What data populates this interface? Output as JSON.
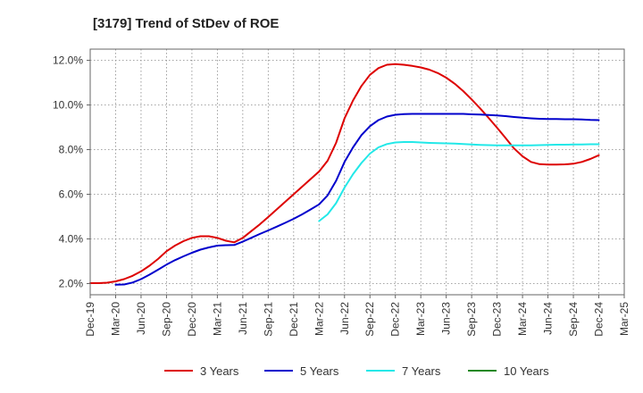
{
  "chart_data": {
    "type": "line",
    "title": "[3179]  Trend of StDev of ROE",
    "xlabel": "",
    "ylabel": "",
    "x_ticks": [
      "Dec-19",
      "Mar-20",
      "Jun-20",
      "Sep-20",
      "Dec-20",
      "Mar-21",
      "Jun-21",
      "Sep-21",
      "Dec-21",
      "Mar-22",
      "Jun-22",
      "Sep-22",
      "Dec-22",
      "Mar-23",
      "Jun-23",
      "Sep-23",
      "Dec-23",
      "Mar-24",
      "Jun-24",
      "Sep-24",
      "Dec-24",
      "Mar-25"
    ],
    "y_ticks": [
      "2.0%",
      "4.0%",
      "6.0%",
      "8.0%",
      "10.0%",
      "12.0%"
    ],
    "y_tick_values": [
      2,
      4,
      6,
      8,
      10,
      12
    ],
    "ylim": [
      1.5,
      12.5
    ],
    "grid": true,
    "legend_position": "bottom",
    "series": [
      {
        "name": "3 Years",
        "color": "#dd0000",
        "points": [
          [
            "Dec-19",
            2.02
          ],
          [
            "Jan-20",
            2.02
          ],
          [
            "Feb-20",
            2.04
          ],
          [
            "Mar-20",
            2.1
          ],
          [
            "Apr-20",
            2.2
          ],
          [
            "May-20",
            2.35
          ],
          [
            "Jun-20",
            2.55
          ],
          [
            "Jul-20",
            2.8
          ],
          [
            "Aug-20",
            3.1
          ],
          [
            "Sep-20",
            3.45
          ],
          [
            "Oct-20",
            3.7
          ],
          [
            "Nov-20",
            3.9
          ],
          [
            "Dec-20",
            4.05
          ],
          [
            "Jan-21",
            4.12
          ],
          [
            "Feb-21",
            4.12
          ],
          [
            "Mar-21",
            4.05
          ],
          [
            "Apr-21",
            3.92
          ],
          [
            "May-21",
            3.85
          ],
          [
            "Jun-21",
            4.05
          ],
          [
            "Jul-21",
            4.35
          ],
          [
            "Aug-21",
            4.65
          ],
          [
            "Sep-21",
            4.98
          ],
          [
            "Oct-21",
            5.32
          ],
          [
            "Nov-21",
            5.66
          ],
          [
            "Dec-21",
            6.0
          ],
          [
            "Jan-22",
            6.34
          ],
          [
            "Feb-22",
            6.68
          ],
          [
            "Mar-22",
            7.02
          ],
          [
            "Apr-22",
            7.5
          ],
          [
            "May-22",
            8.3
          ],
          [
            "Jun-22",
            9.4
          ],
          [
            "Jul-22",
            10.2
          ],
          [
            "Aug-22",
            10.85
          ],
          [
            "Sep-22",
            11.35
          ],
          [
            "Oct-22",
            11.65
          ],
          [
            "Nov-22",
            11.8
          ],
          [
            "Dec-22",
            11.83
          ],
          [
            "Jan-23",
            11.8
          ],
          [
            "Feb-23",
            11.75
          ],
          [
            "Mar-23",
            11.68
          ],
          [
            "Apr-23",
            11.58
          ],
          [
            "May-23",
            11.43
          ],
          [
            "Jun-23",
            11.22
          ],
          [
            "Jul-23",
            10.95
          ],
          [
            "Aug-23",
            10.62
          ],
          [
            "Sep-23",
            10.25
          ],
          [
            "Oct-23",
            9.85
          ],
          [
            "Nov-23",
            9.42
          ],
          [
            "Dec-23",
            8.98
          ],
          [
            "Jan-24",
            8.52
          ],
          [
            "Feb-24",
            8.05
          ],
          [
            "Mar-24",
            7.7
          ],
          [
            "Apr-24",
            7.45
          ],
          [
            "May-24",
            7.35
          ],
          [
            "Jun-24",
            7.33
          ],
          [
            "Jul-24",
            7.33
          ],
          [
            "Aug-24",
            7.34
          ],
          [
            "Sep-24",
            7.37
          ],
          [
            "Oct-24",
            7.45
          ],
          [
            "Nov-24",
            7.58
          ],
          [
            "Dec-24",
            7.75
          ]
        ]
      },
      {
        "name": "5 Years",
        "color": "#0000cc",
        "points": [
          [
            "Mar-20",
            1.95
          ],
          [
            "Apr-20",
            1.96
          ],
          [
            "May-20",
            2.05
          ],
          [
            "Jun-20",
            2.2
          ],
          [
            "Jul-20",
            2.4
          ],
          [
            "Aug-20",
            2.62
          ],
          [
            "Sep-20",
            2.85
          ],
          [
            "Oct-20",
            3.05
          ],
          [
            "Nov-20",
            3.22
          ],
          [
            "Dec-20",
            3.38
          ],
          [
            "Jan-21",
            3.52
          ],
          [
            "Feb-21",
            3.62
          ],
          [
            "Mar-21",
            3.7
          ],
          [
            "Apr-21",
            3.72
          ],
          [
            "May-21",
            3.73
          ],
          [
            "Jun-21",
            3.88
          ],
          [
            "Jul-21",
            4.05
          ],
          [
            "Aug-21",
            4.22
          ],
          [
            "Sep-21",
            4.38
          ],
          [
            "Oct-21",
            4.55
          ],
          [
            "Nov-21",
            4.72
          ],
          [
            "Dec-21",
            4.9
          ],
          [
            "Jan-22",
            5.1
          ],
          [
            "Feb-22",
            5.32
          ],
          [
            "Mar-22",
            5.55
          ],
          [
            "Apr-22",
            5.95
          ],
          [
            "May-22",
            6.6
          ],
          [
            "Jun-22",
            7.45
          ],
          [
            "Jul-22",
            8.1
          ],
          [
            "Aug-22",
            8.65
          ],
          [
            "Sep-22",
            9.05
          ],
          [
            "Oct-22",
            9.32
          ],
          [
            "Nov-22",
            9.48
          ],
          [
            "Dec-22",
            9.56
          ],
          [
            "Jan-23",
            9.59
          ],
          [
            "Feb-23",
            9.6
          ],
          [
            "Mar-23",
            9.6
          ],
          [
            "Apr-23",
            9.6
          ],
          [
            "May-23",
            9.6
          ],
          [
            "Jun-23",
            9.6
          ],
          [
            "Jul-23",
            9.6
          ],
          [
            "Aug-23",
            9.6
          ],
          [
            "Sep-23",
            9.58
          ],
          [
            "Oct-23",
            9.57
          ],
          [
            "Nov-23",
            9.55
          ],
          [
            "Dec-23",
            9.53
          ],
          [
            "Jan-24",
            9.5
          ],
          [
            "Feb-24",
            9.46
          ],
          [
            "Mar-24",
            9.43
          ],
          [
            "Apr-24",
            9.4
          ],
          [
            "May-24",
            9.38
          ],
          [
            "Jun-24",
            9.37
          ],
          [
            "Jul-24",
            9.37
          ],
          [
            "Aug-24",
            9.36
          ],
          [
            "Sep-24",
            9.36
          ],
          [
            "Oct-24",
            9.35
          ],
          [
            "Nov-24",
            9.33
          ],
          [
            "Dec-24",
            9.32
          ]
        ]
      },
      {
        "name": "7 Years",
        "color": "#22e8e8",
        "points": [
          [
            "Mar-22",
            4.8
          ],
          [
            "Apr-22",
            5.1
          ],
          [
            "May-22",
            5.6
          ],
          [
            "Jun-22",
            6.3
          ],
          [
            "Jul-22",
            6.9
          ],
          [
            "Aug-22",
            7.4
          ],
          [
            "Sep-22",
            7.82
          ],
          [
            "Oct-22",
            8.1
          ],
          [
            "Nov-22",
            8.25
          ],
          [
            "Dec-22",
            8.32
          ],
          [
            "Jan-23",
            8.34
          ],
          [
            "Feb-23",
            8.34
          ],
          [
            "Mar-23",
            8.32
          ],
          [
            "Apr-23",
            8.3
          ],
          [
            "May-23",
            8.29
          ],
          [
            "Jun-23",
            8.28
          ],
          [
            "Jul-23",
            8.27
          ],
          [
            "Aug-23",
            8.25
          ],
          [
            "Sep-23",
            8.23
          ],
          [
            "Oct-23",
            8.21
          ],
          [
            "Nov-23",
            8.2
          ],
          [
            "Dec-23",
            8.19
          ],
          [
            "Jan-24",
            8.19
          ],
          [
            "Feb-24",
            8.19
          ],
          [
            "Mar-24",
            8.19
          ],
          [
            "Apr-24",
            8.19
          ],
          [
            "May-24",
            8.2
          ],
          [
            "Jun-24",
            8.21
          ],
          [
            "Jul-24",
            8.22
          ],
          [
            "Aug-24",
            8.22
          ],
          [
            "Sep-24",
            8.23
          ],
          [
            "Oct-24",
            8.23
          ],
          [
            "Nov-24",
            8.24
          ],
          [
            "Dec-24",
            8.24
          ]
        ]
      },
      {
        "name": "10 Years",
        "color": "#228822",
        "points": []
      }
    ]
  }
}
